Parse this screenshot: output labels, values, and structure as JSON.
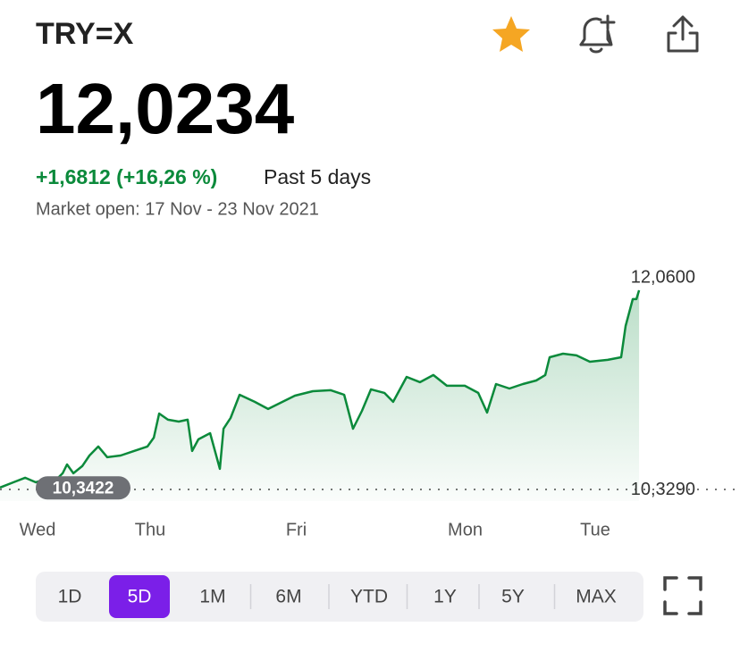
{
  "header": {
    "symbol": "TRY=X",
    "price": "12,0234",
    "change": "+1,6812 (+16,26 %)",
    "period": "Past 5 days",
    "market": "Market open: 17 Nov - 23 Nov 2021"
  },
  "chart_data": {
    "type": "line",
    "color": "#0b8a3b",
    "x": [
      0,
      0.1,
      0.187,
      0.267,
      0.333,
      0.4,
      0.467,
      0.5,
      0.547,
      0.613,
      0.667,
      0.733,
      0.8,
      0.9,
      1,
      1.1,
      1.147,
      1.187,
      1.253,
      1.333,
      1.4,
      1.433,
      1.48,
      1.567,
      1.64,
      1.667,
      1.72,
      1.787,
      1.9,
      2,
      2.133,
      2.2,
      2.333,
      2.467,
      2.567,
      2.633,
      2.7,
      2.767,
      2.867,
      2.933,
      3.033,
      3.133,
      3.233,
      3.333,
      3.467,
      3.567,
      3.633,
      3.7,
      3.8,
      3.9,
      4,
      4.067,
      4.1,
      4.2,
      4.3,
      4.4,
      4.533,
      4.633,
      4.667,
      4.72,
      4.747,
      4.767
    ],
    "values": [
      10.345,
      10.391,
      10.43,
      10.391,
      10.414,
      10.391,
      10.469,
      10.546,
      10.469,
      10.531,
      10.624,
      10.702,
      10.609,
      10.624,
      10.663,
      10.702,
      10.779,
      10.989,
      10.935,
      10.919,
      10.935,
      10.663,
      10.764,
      10.818,
      10.508,
      10.857,
      10.95,
      11.152,
      11.09,
      11.028,
      11.105,
      11.144,
      11.183,
      11.191,
      11.152,
      10.857,
      11.012,
      11.199,
      11.168,
      11.09,
      11.307,
      11.261,
      11.323,
      11.23,
      11.23,
      11.168,
      10.997,
      11.245,
      11.206,
      11.245,
      11.276,
      11.323,
      11.478,
      11.509,
      11.494,
      11.439,
      11.455,
      11.478,
      11.75,
      11.983,
      11.983,
      12.06
    ],
    "xlim": [
      0,
      5.52
    ],
    "xticks": [
      {
        "value": 0.28,
        "label": "Wed"
      },
      {
        "value": 1.12,
        "label": "Thu"
      },
      {
        "value": 2.21,
        "label": "Fri"
      },
      {
        "value": 3.47,
        "label": "Mon"
      },
      {
        "value": 4.44,
        "label": "Tue"
      }
    ],
    "ylim": [
      10.15,
      12.2
    ],
    "yticks": [
      {
        "value": 10.329,
        "label": "10,3290"
      },
      {
        "value": 12.06,
        "label": "12,0600"
      }
    ],
    "previous_close": {
      "value": 10.3422,
      "label": "10,3422"
    }
  },
  "ranges": {
    "items": [
      "1D",
      "5D",
      "1M",
      "6M",
      "YTD",
      "1Y",
      "5Y",
      "MAX"
    ],
    "selected_index": 1
  }
}
